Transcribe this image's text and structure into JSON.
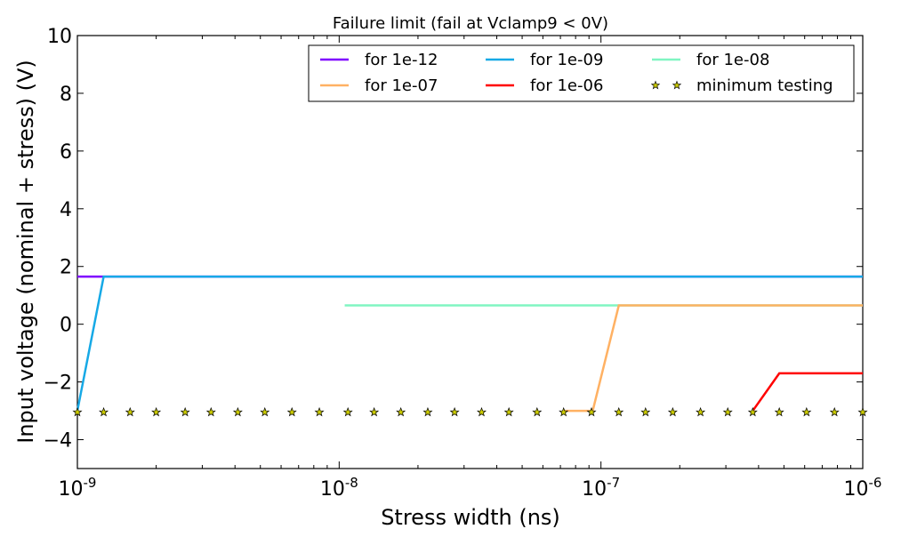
{
  "chart_data": {
    "type": "line",
    "title": "Failure limit (fail at Vclamp9 < 0V)",
    "xlabel": "Stress width (ns)",
    "ylabel": "Input voltage (nominal + stress) (V)",
    "xscale": "log",
    "xlim": [
      1e-09,
      1e-06
    ],
    "ylim": [
      -5,
      10
    ],
    "xticks": [
      {
        "value": 1e-09,
        "base": "10",
        "exp": "-9"
      },
      {
        "value": 1e-08,
        "base": "10",
        "exp": "-8"
      },
      {
        "value": 1e-07,
        "base": "10",
        "exp": "-7"
      },
      {
        "value": 1e-06,
        "base": "10",
        "exp": "-6"
      }
    ],
    "yticks": [
      {
        "value": 10,
        "label": "10"
      },
      {
        "value": 8,
        "label": "8"
      },
      {
        "value": 6,
        "label": "6"
      },
      {
        "value": 4,
        "label": "4"
      },
      {
        "value": 2,
        "label": "2"
      },
      {
        "value": 0,
        "label": "0"
      },
      {
        "value": -2,
        "label": "−2"
      },
      {
        "value": -4,
        "label": "−4"
      }
    ],
    "grid": false,
    "legend_position": "top-right",
    "legend_columns": 3,
    "series": [
      {
        "name": "for 1e-12",
        "color": "#7f00ff",
        "marker": "none",
        "x": [
          1e-09,
          1.26e-09,
          1e-06
        ],
        "y": [
          1.65,
          1.65,
          1.65
        ]
      },
      {
        "name": "for 1e-09",
        "color": "#16a9e6",
        "marker": "none",
        "x": [
          1e-09,
          1.26e-09,
          1e-06
        ],
        "y": [
          -3.0,
          1.65,
          1.65
        ]
      },
      {
        "name": "for 1e-08",
        "color": "#80f5c2",
        "marker": "none",
        "x": [
          1.05e-08,
          1e-06
        ],
        "y": [
          0.65,
          0.65
        ]
      },
      {
        "name": "for 1e-07",
        "color": "#ffb163",
        "marker": "none",
        "x": [
          7.2e-08,
          9.3e-08,
          1.17e-07,
          1e-06
        ],
        "y": [
          -3.0,
          -3.0,
          0.65,
          0.65
        ]
      },
      {
        "name": "for 1e-06",
        "color": "#ff0000",
        "marker": "none",
        "x": [
          3.8e-07,
          4.8e-07,
          1e-06
        ],
        "y": [
          -3.0,
          -1.7,
          -1.7
        ]
      },
      {
        "name": "minimum testing",
        "color": "#cccc00",
        "marker": "star",
        "x": [
          1e-09,
          1.26e-09,
          1.59e-09,
          2e-09,
          2.58e-09,
          3.24e-09,
          4.1e-09,
          5.2e-09,
          6.6e-09,
          8.4e-09,
          1.08e-08,
          1.36e-08,
          1.72e-08,
          2.18e-08,
          2.76e-08,
          3.5e-08,
          4.45e-08,
          5.7e-08,
          7.2e-08,
          9.2e-08,
          1.17e-07,
          1.48e-07,
          1.88e-07,
          2.4e-07,
          3.05e-07,
          3.8e-07,
          4.8e-07,
          6.1e-07,
          7.8e-07,
          1e-06
        ],
        "y": [
          -3.05,
          -3.05,
          -3.05,
          -3.05,
          -3.05,
          -3.05,
          -3.05,
          -3.05,
          -3.05,
          -3.05,
          -3.05,
          -3.05,
          -3.05,
          -3.05,
          -3.05,
          -3.05,
          -3.05,
          -3.05,
          -3.05,
          -3.05,
          -3.05,
          -3.05,
          -3.05,
          -3.05,
          -3.05,
          -3.05,
          -3.05,
          -3.05,
          -3.05,
          -3.05
        ]
      }
    ]
  }
}
